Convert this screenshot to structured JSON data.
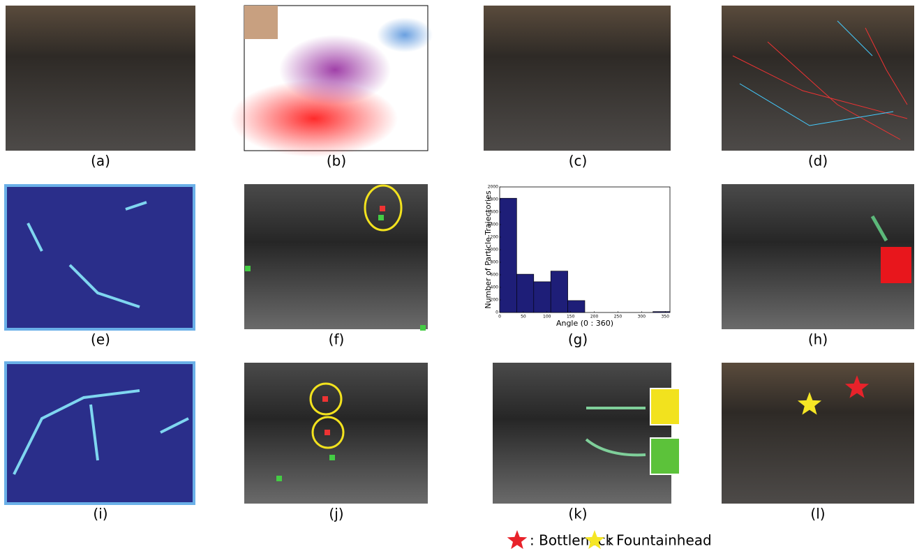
{
  "panels": [
    {
      "caption": "(a)"
    },
    {
      "caption": "(b)"
    },
    {
      "caption": "(c)"
    },
    {
      "caption": "(d)"
    },
    {
      "caption": "(e)"
    },
    {
      "caption": "(f)"
    },
    {
      "caption": "(g)"
    },
    {
      "caption": "(h)"
    },
    {
      "caption": "(i)"
    },
    {
      "caption": "(j)"
    },
    {
      "caption": "(k)"
    },
    {
      "caption": "(l)"
    }
  ],
  "chart_data": {
    "type": "histogram",
    "x_label": "Angle (0 : 360)",
    "y_label": "Number of Particle Trajectories",
    "bins": [
      0,
      36,
      72,
      108,
      144,
      180,
      216,
      252,
      288,
      324,
      360
    ],
    "values": [
      1820,
      610,
      490,
      660,
      190,
      0,
      0,
      0,
      0,
      15
    ],
    "color": "#1e1e78",
    "xlim": [
      0,
      360
    ],
    "xticks": [
      0,
      50,
      100,
      150,
      200,
      250,
      300,
      350
    ],
    "ylim": [
      0,
      2000
    ],
    "yticks": [
      0,
      200,
      400,
      600,
      800,
      1000,
      1200,
      1400,
      1600,
      1800,
      2000
    ]
  },
  "legend": [
    {
      "label": ": Bottleneck",
      "color": "#e8222a"
    },
    {
      "label": ": Fountainhead",
      "color": "#f5e625"
    }
  ]
}
